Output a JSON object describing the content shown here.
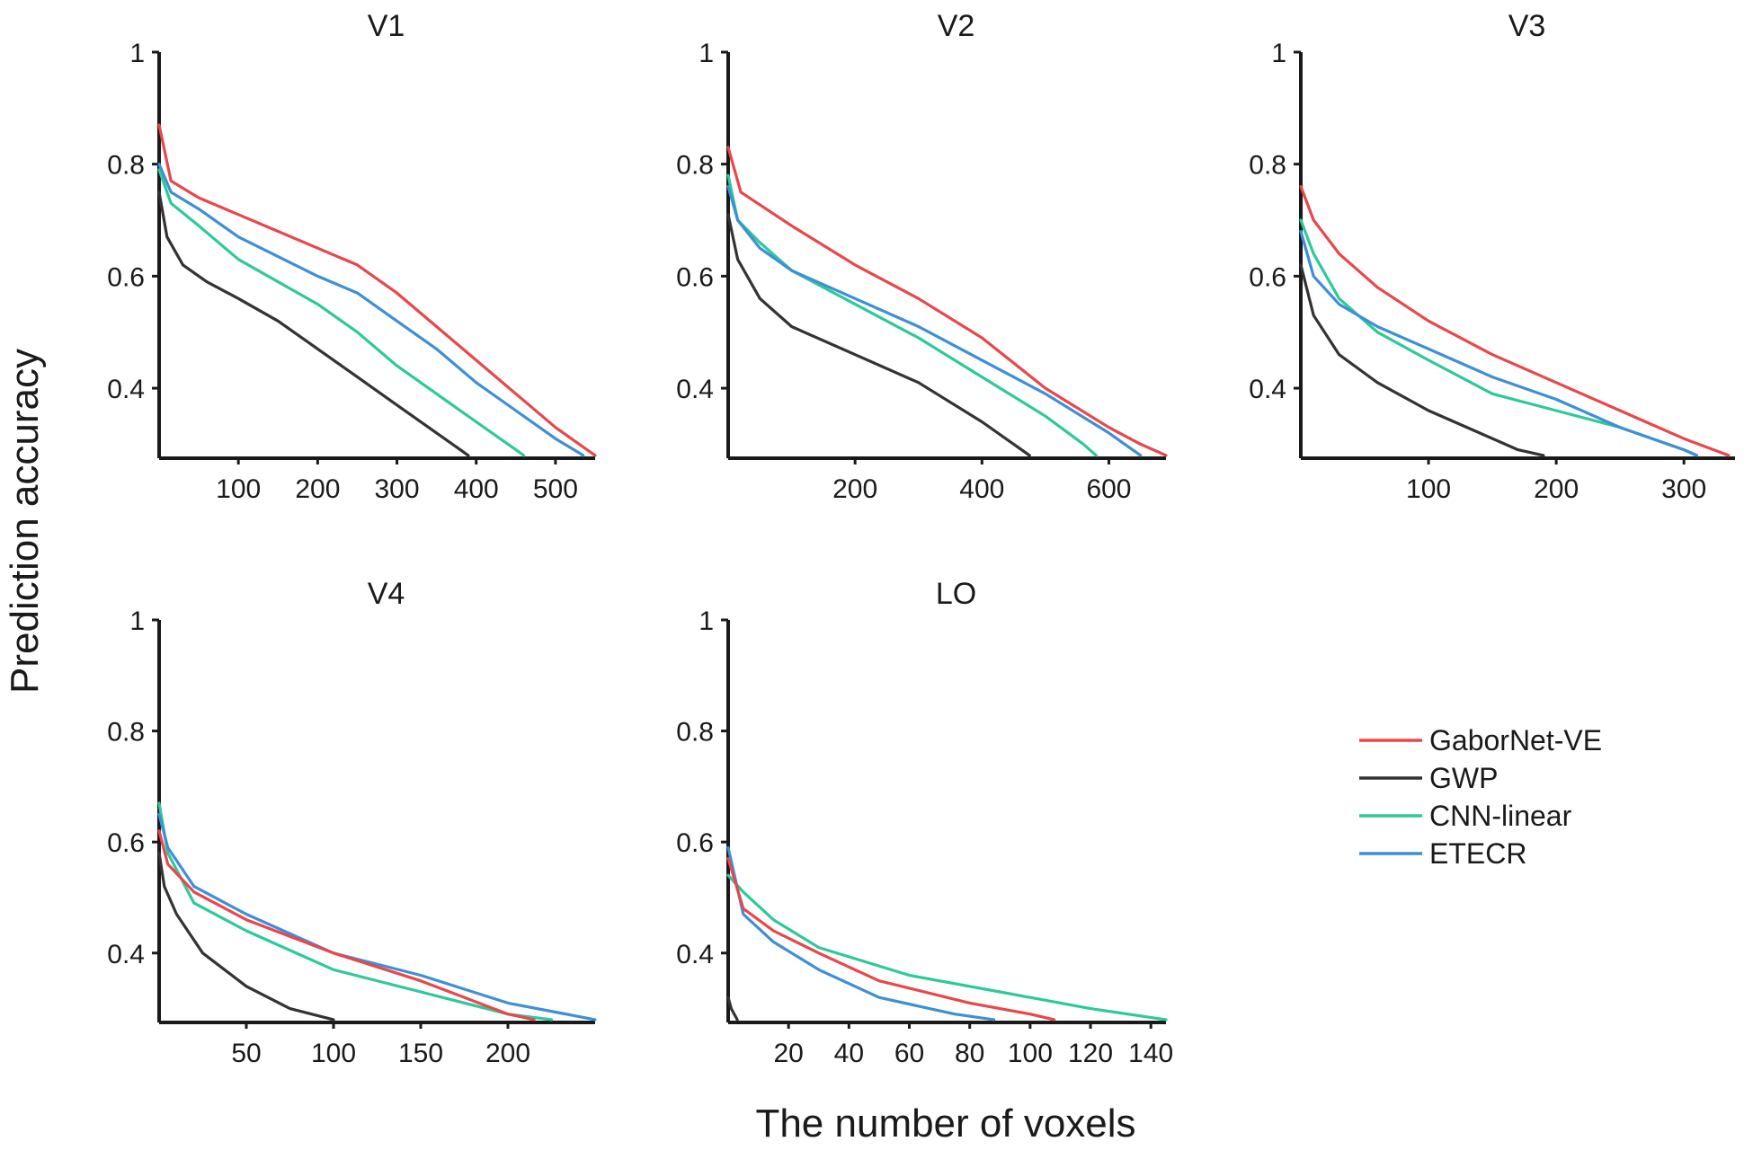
{
  "figure": {
    "ylabel": "Prediction accuracy",
    "xlabel": "The number of voxels"
  },
  "legend": [
    {
      "name": "GaborNet-VE",
      "color": "#e8474b"
    },
    {
      "name": "GWP",
      "color": "#333333"
    },
    {
      "name": "CNN-linear",
      "color": "#2ec99a"
    },
    {
      "name": "ETECR",
      "color": "#3f8fd6"
    }
  ],
  "chart_data": [
    {
      "type": "line",
      "title": "V1",
      "xlim": [
        0,
        550
      ],
      "ylim": [
        0.275,
        1
      ],
      "xticks": [
        100,
        200,
        300,
        400,
        500
      ],
      "yticks": [
        0.4,
        0.6,
        0.8,
        1
      ],
      "ytick_labels": [
        "0.4",
        "0.6",
        "0.8",
        "1"
      ],
      "series": [
        {
          "name": "GaborNet-VE",
          "points": [
            [
              0,
              0.87
            ],
            [
              15,
              0.77
            ],
            [
              50,
              0.74
            ],
            [
              100,
              0.71
            ],
            [
              200,
              0.65
            ],
            [
              250,
              0.62
            ],
            [
              300,
              0.57
            ],
            [
              350,
              0.51
            ],
            [
              400,
              0.45
            ],
            [
              450,
              0.39
            ],
            [
              500,
              0.33
            ],
            [
              550,
              0.28
            ]
          ]
        },
        {
          "name": "GWP",
          "points": [
            [
              0,
              0.75
            ],
            [
              10,
              0.67
            ],
            [
              30,
              0.62
            ],
            [
              60,
              0.59
            ],
            [
              100,
              0.56
            ],
            [
              150,
              0.52
            ],
            [
              200,
              0.47
            ],
            [
              250,
              0.42
            ],
            [
              300,
              0.37
            ],
            [
              350,
              0.32
            ],
            [
              390,
              0.28
            ]
          ]
        },
        {
          "name": "CNN-linear",
          "points": [
            [
              0,
              0.79
            ],
            [
              15,
              0.73
            ],
            [
              50,
              0.69
            ],
            [
              100,
              0.63
            ],
            [
              200,
              0.55
            ],
            [
              250,
              0.5
            ],
            [
              300,
              0.44
            ],
            [
              350,
              0.39
            ],
            [
              400,
              0.34
            ],
            [
              450,
              0.29
            ],
            [
              460,
              0.28
            ]
          ]
        },
        {
          "name": "ETECR",
          "points": [
            [
              0,
              0.8
            ],
            [
              15,
              0.75
            ],
            [
              50,
              0.72
            ],
            [
              100,
              0.67
            ],
            [
              200,
              0.6
            ],
            [
              250,
              0.57
            ],
            [
              300,
              0.52
            ],
            [
              350,
              0.47
            ],
            [
              400,
              0.41
            ],
            [
              450,
              0.36
            ],
            [
              500,
              0.31
            ],
            [
              535,
              0.28
            ]
          ]
        }
      ]
    },
    {
      "type": "line",
      "title": "V2",
      "xlim": [
        0,
        690
      ],
      "ylim": [
        0.275,
        1
      ],
      "xticks": [
        200,
        400,
        600
      ],
      "yticks": [
        0.4,
        0.6,
        0.8,
        1
      ],
      "ytick_labels": [
        "0.4",
        "0.6",
        "0.8",
        "1"
      ],
      "series": [
        {
          "name": "GaborNet-VE",
          "points": [
            [
              0,
              0.83
            ],
            [
              20,
              0.75
            ],
            [
              100,
              0.69
            ],
            [
              200,
              0.62
            ],
            [
              300,
              0.56
            ],
            [
              400,
              0.49
            ],
            [
              500,
              0.4
            ],
            [
              600,
              0.33
            ],
            [
              650,
              0.3
            ],
            [
              690,
              0.28
            ]
          ]
        },
        {
          "name": "GWP",
          "points": [
            [
              0,
              0.71
            ],
            [
              15,
              0.63
            ],
            [
              50,
              0.56
            ],
            [
              100,
              0.51
            ],
            [
              200,
              0.46
            ],
            [
              300,
              0.41
            ],
            [
              400,
              0.34
            ],
            [
              450,
              0.3
            ],
            [
              475,
              0.28
            ]
          ]
        },
        {
          "name": "CNN-linear",
          "points": [
            [
              0,
              0.78
            ],
            [
              15,
              0.7
            ],
            [
              50,
              0.66
            ],
            [
              100,
              0.61
            ],
            [
              200,
              0.55
            ],
            [
              300,
              0.49
            ],
            [
              400,
              0.42
            ],
            [
              500,
              0.35
            ],
            [
              560,
              0.3
            ],
            [
              580,
              0.28
            ]
          ]
        },
        {
          "name": "ETECR",
          "points": [
            [
              0,
              0.76
            ],
            [
              15,
              0.7
            ],
            [
              50,
              0.65
            ],
            [
              100,
              0.61
            ],
            [
              200,
              0.56
            ],
            [
              300,
              0.51
            ],
            [
              400,
              0.45
            ],
            [
              500,
              0.39
            ],
            [
              600,
              0.32
            ],
            [
              650,
              0.28
            ]
          ]
        }
      ]
    },
    {
      "type": "line",
      "title": "V3",
      "xlim": [
        0,
        340
      ],
      "ylim": [
        0.275,
        1
      ],
      "xticks": [
        100,
        200,
        300
      ],
      "yticks": [
        0.4,
        0.6,
        0.8,
        1
      ],
      "ytick_labels": [
        "0.4",
        "0.6",
        "0.8",
        "1"
      ],
      "series": [
        {
          "name": "GaborNet-VE",
          "points": [
            [
              0,
              0.76
            ],
            [
              10,
              0.7
            ],
            [
              30,
              0.64
            ],
            [
              60,
              0.58
            ],
            [
              100,
              0.52
            ],
            [
              150,
              0.46
            ],
            [
              200,
              0.41
            ],
            [
              250,
              0.36
            ],
            [
              300,
              0.31
            ],
            [
              335,
              0.28
            ]
          ]
        },
        {
          "name": "GWP",
          "points": [
            [
              0,
              0.62
            ],
            [
              10,
              0.53
            ],
            [
              30,
              0.46
            ],
            [
              60,
              0.41
            ],
            [
              100,
              0.36
            ],
            [
              140,
              0.32
            ],
            [
              170,
              0.29
            ],
            [
              190,
              0.28
            ]
          ]
        },
        {
          "name": "CNN-linear",
          "points": [
            [
              0,
              0.7
            ],
            [
              10,
              0.64
            ],
            [
              30,
              0.56
            ],
            [
              60,
              0.5
            ],
            [
              100,
              0.45
            ],
            [
              150,
              0.39
            ],
            [
              200,
              0.36
            ],
            [
              250,
              0.33
            ],
            [
              300,
              0.29
            ],
            [
              310,
              0.28
            ]
          ]
        },
        {
          "name": "ETECR",
          "points": [
            [
              0,
              0.68
            ],
            [
              10,
              0.6
            ],
            [
              30,
              0.55
            ],
            [
              60,
              0.51
            ],
            [
              100,
              0.47
            ],
            [
              150,
              0.42
            ],
            [
              200,
              0.38
            ],
            [
              250,
              0.33
            ],
            [
              300,
              0.29
            ],
            [
              310,
              0.28
            ]
          ]
        }
      ]
    },
    {
      "type": "line",
      "title": "V4",
      "xlim": [
        0,
        250
      ],
      "ylim": [
        0.275,
        1
      ],
      "xticks": [
        50,
        100,
        150,
        200
      ],
      "yticks": [
        0.4,
        0.6,
        0.8,
        1
      ],
      "ytick_labels": [
        "0.4",
        "0.6",
        "0.8",
        "1"
      ],
      "series": [
        {
          "name": "GaborNet-VE",
          "points": [
            [
              0,
              0.62
            ],
            [
              5,
              0.56
            ],
            [
              20,
              0.51
            ],
            [
              50,
              0.46
            ],
            [
              100,
              0.4
            ],
            [
              150,
              0.35
            ],
            [
              200,
              0.29
            ],
            [
              215,
              0.28
            ]
          ]
        },
        {
          "name": "GWP",
          "points": [
            [
              0,
              0.58
            ],
            [
              3,
              0.52
            ],
            [
              10,
              0.47
            ],
            [
              25,
              0.4
            ],
            [
              50,
              0.34
            ],
            [
              75,
              0.3
            ],
            [
              100,
              0.28
            ]
          ]
        },
        {
          "name": "CNN-linear",
          "points": [
            [
              0,
              0.67
            ],
            [
              5,
              0.58
            ],
            [
              20,
              0.49
            ],
            [
              50,
              0.44
            ],
            [
              100,
              0.37
            ],
            [
              150,
              0.33
            ],
            [
              200,
              0.29
            ],
            [
              225,
              0.28
            ]
          ]
        },
        {
          "name": "ETECR",
          "points": [
            [
              0,
              0.65
            ],
            [
              5,
              0.59
            ],
            [
              20,
              0.52
            ],
            [
              50,
              0.47
            ],
            [
              100,
              0.4
            ],
            [
              150,
              0.36
            ],
            [
              200,
              0.31
            ],
            [
              250,
              0.28
            ]
          ]
        }
      ]
    },
    {
      "type": "line",
      "title": "LO",
      "xlim": [
        0,
        145
      ],
      "ylim": [
        0.275,
        1
      ],
      "xticks": [
        20,
        40,
        60,
        80,
        100,
        120,
        140
      ],
      "yticks": [
        0.4,
        0.6,
        0.8,
        1
      ],
      "ytick_labels": [
        "0.4",
        "0.6",
        "0.8",
        "1"
      ],
      "series": [
        {
          "name": "GaborNet-VE",
          "points": [
            [
              0,
              0.57
            ],
            [
              5,
              0.48
            ],
            [
              15,
              0.44
            ],
            [
              30,
              0.4
            ],
            [
              50,
              0.35
            ],
            [
              80,
              0.31
            ],
            [
              100,
              0.29
            ],
            [
              108,
              0.28
            ]
          ]
        },
        {
          "name": "GWP",
          "points": [
            [
              0,
              0.32
            ],
            [
              1,
              0.3
            ],
            [
              3,
              0.28
            ]
          ]
        },
        {
          "name": "CNN-linear",
          "points": [
            [
              0,
              0.54
            ],
            [
              5,
              0.51
            ],
            [
              15,
              0.46
            ],
            [
              30,
              0.41
            ],
            [
              60,
              0.36
            ],
            [
              90,
              0.33
            ],
            [
              120,
              0.3
            ],
            [
              145,
              0.28
            ]
          ]
        },
        {
          "name": "ETECR",
          "points": [
            [
              0,
              0.59
            ],
            [
              5,
              0.47
            ],
            [
              15,
              0.42
            ],
            [
              30,
              0.37
            ],
            [
              50,
              0.32
            ],
            [
              75,
              0.29
            ],
            [
              88,
              0.28
            ]
          ]
        }
      ]
    }
  ]
}
